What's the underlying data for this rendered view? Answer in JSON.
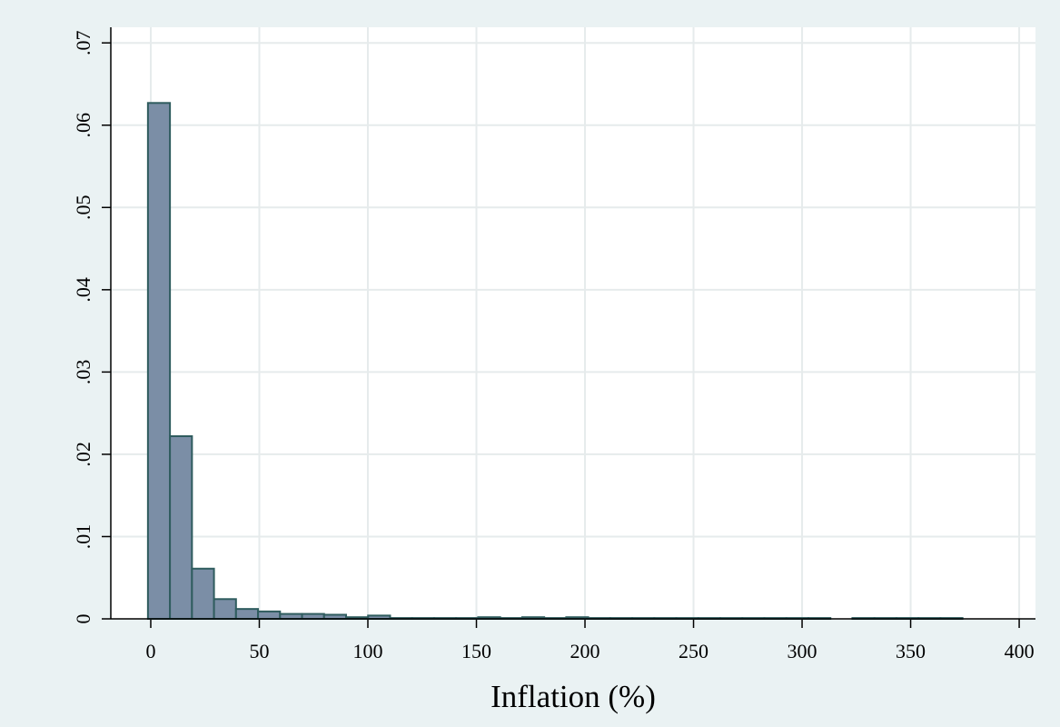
{
  "chart_data": {
    "type": "histogram",
    "x_label": "Inflation (%)",
    "bins": [
      -1.3,
      8.84,
      18.98,
      29.12,
      39.26,
      49.4,
      59.54,
      69.68,
      79.82,
      89.96,
      100.1,
      110.24,
      120.38,
      130.52,
      140.66,
      150.8,
      160.94,
      171.08,
      181.22,
      191.36,
      201.5,
      211.64,
      221.78,
      231.92,
      242.06,
      252.2,
      262.34,
      272.48,
      282.62,
      292.76,
      302.9,
      313.04,
      323.18,
      333.32,
      343.46,
      353.6,
      363.74,
      373.88
    ],
    "values": [
      0.0627,
      0.0222,
      0.0061,
      0.0024,
      0.0012,
      0.0009,
      0.0006,
      0.0006,
      0.0005,
      0.0002,
      0.0004,
      0.0001,
      0.0001,
      0.0001,
      0.0001,
      0.0002,
      0.0001,
      0.0002,
      0.0001,
      0.0002,
      0.0001,
      0.0001,
      0.0001,
      0.0001,
      0.0001,
      0.0001,
      0.0001,
      0.0001,
      0.0001,
      0.0001,
      0.0001,
      0,
      0.0001,
      0.0001,
      0.0001,
      0.0001,
      0.0001
    ],
    "color": "#7b8ea6",
    "edge_color": "#2f5c5e",
    "xlim": [
      -18.4,
      407.5
    ],
    "ylim": [
      0,
      0.0719
    ],
    "xticks": [
      0,
      50,
      100,
      150,
      200,
      250,
      300,
      350,
      400
    ],
    "yticks": [
      {
        "value": 0,
        "label": "0"
      },
      {
        "value": 0.01,
        "label": ".01"
      },
      {
        "value": 0.02,
        "label": ".02"
      },
      {
        "value": 0.03,
        "label": ".03"
      },
      {
        "value": 0.04,
        "label": ".04"
      },
      {
        "value": 0.05,
        "label": ".05"
      },
      {
        "value": 0.06,
        "label": ".06"
      },
      {
        "value": 0.07,
        "label": ".07"
      }
    ],
    "grid": true
  }
}
